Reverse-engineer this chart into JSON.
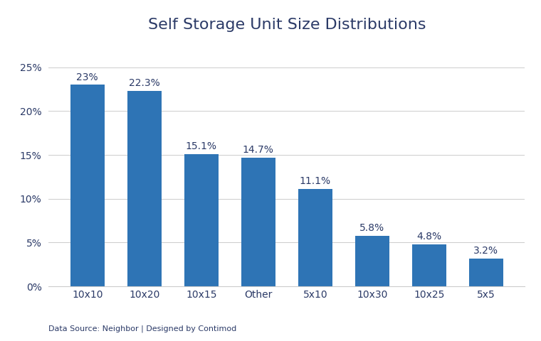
{
  "title": "Self Storage Unit Size Distributions",
  "categories": [
    "10x10",
    "10x20",
    "10x15",
    "Other",
    "5x10",
    "10x30",
    "10x25",
    "5x5"
  ],
  "values": [
    23.0,
    22.3,
    15.1,
    14.7,
    11.1,
    5.8,
    4.8,
    3.2
  ],
  "labels": [
    "23%",
    "22.3%",
    "15.1%",
    "14.7%",
    "11.1%",
    "5.8%",
    "4.8%",
    "3.2%"
  ],
  "bar_color": "#2E74B5",
  "background_color": "#FFFFFF",
  "ylabel_ticks": [
    0,
    5,
    10,
    15,
    20,
    25
  ],
  "ylim": [
    0,
    28
  ],
  "footnote": "Data Source: Neighbor | Designed by Contimod",
  "title_fontsize": 16,
  "label_fontsize": 10,
  "tick_fontsize": 10,
  "footnote_fontsize": 8,
  "title_color": "#2B3A67",
  "label_color": "#2B3A67",
  "tick_color": "#2B3A67",
  "footnote_color": "#2B3A67",
  "grid_color": "#CCCCCC",
  "spine_color": "#CCCCCC"
}
